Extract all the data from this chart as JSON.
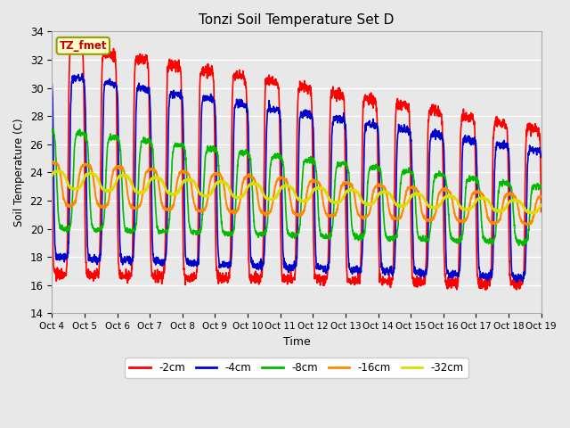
{
  "title": "Tonzi Soil Temperature Set D",
  "xlabel": "Time",
  "ylabel": "Soil Temperature (C)",
  "ylim": [
    14,
    34
  ],
  "background_color": "#e8e8e8",
  "legend_label": "TZ_fmet",
  "series": {
    "-2cm": {
      "color": "#ff0000",
      "lw": 1.2
    },
    "-4cm": {
      "color": "#0000cc",
      "lw": 1.2
    },
    "-8cm": {
      "color": "#00bb00",
      "lw": 1.2
    },
    "-16cm": {
      "color": "#ff8800",
      "lw": 1.5
    },
    "-32cm": {
      "color": "#dddd00",
      "lw": 2.0
    }
  },
  "xtick_labels": [
    "Oct 4",
    "Oct 5",
    "Oct 6",
    "Oct 7",
    "Oct 8",
    "Oct 9",
    "Oct 10",
    "Oct 11",
    "Oct 12",
    "Oct 13",
    "Oct 14",
    "Oct 15",
    "Oct 16",
    "Oct 17",
    "Oct 18",
    "Oct 19"
  ],
  "ytick_values": [
    14,
    16,
    18,
    20,
    22,
    24,
    26,
    28,
    30,
    32,
    34
  ]
}
